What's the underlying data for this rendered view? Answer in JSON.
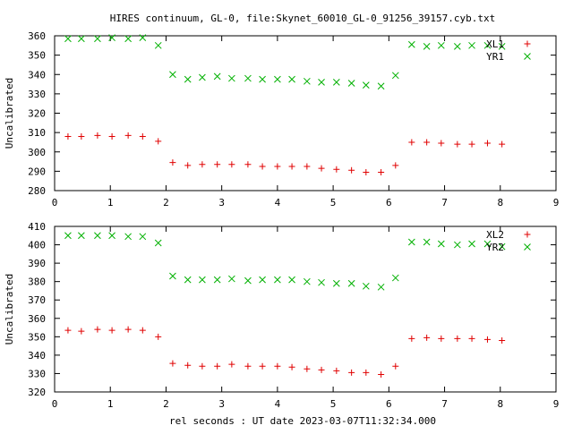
{
  "title": "HIRES continuum, GL-0, file:Skynet_60010_GL-0_91256_39157.cyb.txt",
  "xlabel": "rel seconds : UT date 2023-03-07T11:32:34.000",
  "colors": {
    "plus": "#e00000",
    "cross": "#00b000",
    "axis": "#000000",
    "background": "#ffffff"
  },
  "chart_data": [
    {
      "type": "scatter",
      "ylabel": "Uncalibrated",
      "xlim": [
        0,
        9
      ],
      "ylim": [
        280,
        360
      ],
      "xticks": [
        0,
        1,
        2,
        3,
        4,
        5,
        6,
        7,
        8,
        9
      ],
      "yticks": [
        280,
        290,
        300,
        310,
        320,
        330,
        340,
        350,
        360
      ],
      "legend_position": "top-right",
      "series": [
        {
          "name": "XL1",
          "marker": "plus",
          "x": [
            0.24,
            0.48,
            0.77,
            1.03,
            1.32,
            1.58,
            1.86,
            2.12,
            2.39,
            2.65,
            2.92,
            3.18,
            3.47,
            3.73,
            4.0,
            4.26,
            4.53,
            4.79,
            5.06,
            5.33,
            5.59,
            5.86,
            6.12,
            6.41,
            6.68,
            6.94,
            7.23,
            7.49,
            7.77,
            8.03
          ],
          "y": [
            308,
            308,
            308.5,
            308,
            308.5,
            308,
            305.5,
            294.5,
            293,
            293.5,
            293.5,
            293.5,
            293.5,
            292.5,
            292.5,
            292.5,
            292.5,
            291.5,
            291,
            290.5,
            289.5,
            289.5,
            293,
            305,
            305,
            304.5,
            304,
            304,
            304.5,
            304
          ]
        },
        {
          "name": "YR1",
          "marker": "cross",
          "x": [
            0.24,
            0.48,
            0.77,
            1.03,
            1.32,
            1.58,
            1.86,
            2.12,
            2.39,
            2.65,
            2.92,
            3.18,
            3.47,
            3.73,
            4.0,
            4.26,
            4.53,
            4.79,
            5.06,
            5.33,
            5.59,
            5.86,
            6.12,
            6.41,
            6.68,
            6.94,
            7.23,
            7.49,
            7.77,
            8.03
          ],
          "y": [
            358.5,
            358.5,
            358.5,
            359,
            358.5,
            359,
            355,
            340,
            337.5,
            338.5,
            339,
            338,
            338,
            337.5,
            337.5,
            337.5,
            336.5,
            336,
            336,
            335.5,
            334.5,
            334,
            339.5,
            355.5,
            354.5,
            355,
            354.5,
            355,
            355,
            354.5
          ]
        }
      ]
    },
    {
      "type": "scatter",
      "ylabel": "Uncalibrated",
      "xlim": [
        0,
        9
      ],
      "ylim": [
        320,
        410
      ],
      "xticks": [
        0,
        1,
        2,
        3,
        4,
        5,
        6,
        7,
        8,
        9
      ],
      "yticks": [
        320,
        330,
        340,
        350,
        360,
        370,
        380,
        390,
        400,
        410
      ],
      "legend_position": "top-right",
      "series": [
        {
          "name": "XL2",
          "marker": "plus",
          "x": [
            0.24,
            0.48,
            0.77,
            1.03,
            1.32,
            1.58,
            1.86,
            2.12,
            2.39,
            2.65,
            2.92,
            3.18,
            3.47,
            3.73,
            4.0,
            4.26,
            4.53,
            4.79,
            5.06,
            5.33,
            5.59,
            5.86,
            6.12,
            6.41,
            6.68,
            6.94,
            7.23,
            7.49,
            7.77,
            8.03
          ],
          "y": [
            353.5,
            353,
            354,
            353.5,
            354,
            353.5,
            350,
            335.5,
            334.5,
            334,
            334,
            335,
            334,
            334,
            334,
            333.5,
            332.5,
            332,
            331.5,
            330.5,
            330.5,
            329.5,
            334,
            349,
            349.5,
            349,
            349,
            349,
            348.5,
            348
          ]
        },
        {
          "name": "YR2",
          "marker": "cross",
          "x": [
            0.24,
            0.48,
            0.77,
            1.03,
            1.32,
            1.58,
            1.86,
            2.12,
            2.39,
            2.65,
            2.92,
            3.18,
            3.47,
            3.73,
            4.0,
            4.26,
            4.53,
            4.79,
            5.06,
            5.33,
            5.59,
            5.86,
            6.12,
            6.41,
            6.68,
            6.94,
            7.23,
            7.49,
            7.77,
            8.03
          ],
          "y": [
            405,
            405,
            405,
            405,
            404.5,
            404.5,
            401,
            383,
            381,
            381,
            381,
            381.5,
            380.5,
            381,
            381,
            381,
            380,
            379.5,
            379,
            379,
            377.5,
            377,
            382,
            401.5,
            401.5,
            400.5,
            400,
            400.5,
            400.5,
            399
          ]
        }
      ]
    }
  ]
}
